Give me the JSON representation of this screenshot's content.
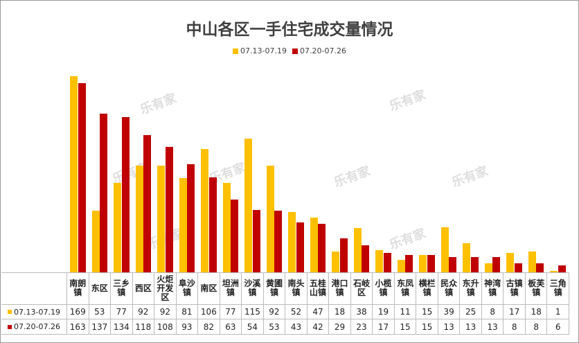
{
  "chart_data": {
    "type": "bar",
    "title": "中山各区一手住宅成交量情况",
    "watermark": "乐有家",
    "categories": [
      "南朗镇",
      "东区",
      "三乡镇",
      "西区",
      "火炬开发区",
      "阜沙镇",
      "南区",
      "坦洲镇",
      "沙溪镇",
      "黄圃镇",
      "南头镇",
      "五桂山镇",
      "港口镇",
      "石岐区",
      "小榄镇",
      "东凤镇",
      "横栏镇",
      "民众镇",
      "东升镇",
      "神湾镇",
      "古镇镇",
      "板芙镇",
      "三角镇"
    ],
    "series": [
      {
        "name": "07.13-07.19",
        "color": "#ffc000",
        "values": [
          169,
          53,
          77,
          92,
          92,
          81,
          106,
          77,
          115,
          92,
          52,
          47,
          18,
          38,
          19,
          11,
          15,
          39,
          25,
          8,
          17,
          18,
          1
        ]
      },
      {
        "name": "07.20-07.26",
        "color": "#c00000",
        "values": [
          163,
          137,
          134,
          118,
          108,
          93,
          82,
          63,
          54,
          53,
          43,
          42,
          29,
          23,
          17,
          15,
          15,
          13,
          13,
          13,
          8,
          8,
          6
        ]
      }
    ]
  }
}
